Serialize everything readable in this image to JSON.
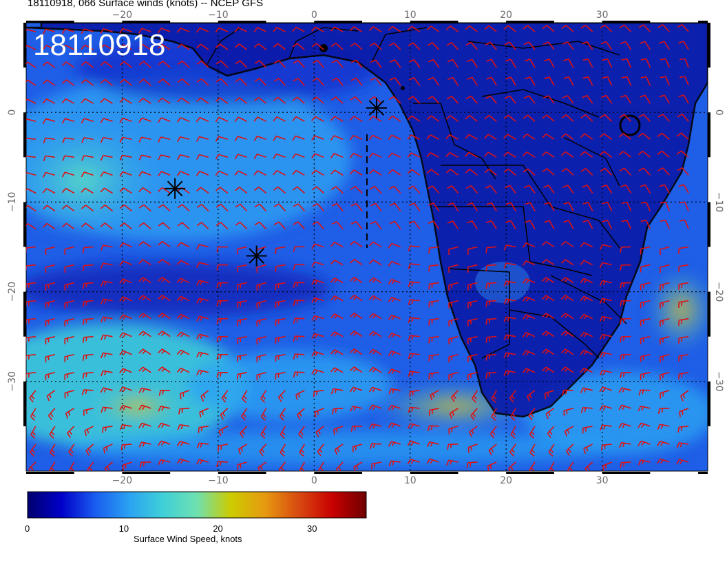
{
  "title": "18110918, 066 Surface winds (knots) -- NCEP GFS",
  "stamp": "18110918",
  "colorbar": {
    "label": "Surface Wind Speed, knots",
    "ticks": [
      "0",
      "10",
      "20",
      "30"
    ],
    "tick_values": [
      0,
      10,
      20,
      30
    ],
    "range": [
      0,
      36
    ],
    "stops": [
      "#00006e",
      "#0000c8",
      "#1a5cf0",
      "#2aa2f2",
      "#3fd0d8",
      "#6ee0b0",
      "#cccc00",
      "#e69a10",
      "#d84a10",
      "#c80000",
      "#6e0000"
    ]
  },
  "map": {
    "lon_range": [
      -30,
      41
    ],
    "lat_range": [
      -40,
      10
    ],
    "lon_ticks": [
      "-20",
      "-10",
      "0",
      "10",
      "20",
      "30"
    ],
    "lon_tick_values": [
      -20,
      -10,
      0,
      10,
      20,
      30
    ],
    "lat_ticks": [
      "0",
      "-10",
      "-20",
      "-30"
    ],
    "lat_tick_values": [
      0,
      -10,
      -20,
      -30
    ],
    "grid": true,
    "barb_color": "#e01010",
    "coast_color": "#000000",
    "markers": [
      {
        "name": "asterisk-1",
        "lon": 6.5,
        "lat": 0.5
      },
      {
        "name": "asterisk-2",
        "lon": -14.5,
        "lat": -8.5
      },
      {
        "name": "asterisk-3",
        "lon": -6,
        "lat": -16
      }
    ]
  }
}
